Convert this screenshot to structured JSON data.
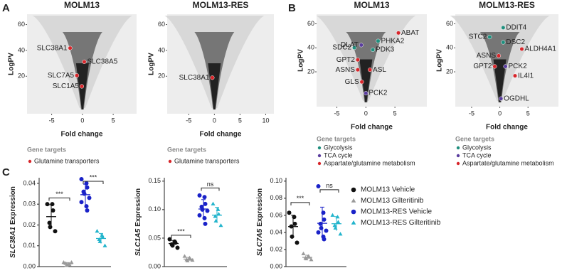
{
  "panel_labels": [
    "A",
    "B",
    "C"
  ],
  "legend": {
    "items": [
      {
        "name": "MOLM13 Vehicle",
        "color": "#111111",
        "marker": "circle"
      },
      {
        "name": "MOLM13 Gilteritinib",
        "color": "#9a9a9a",
        "marker": "triangle"
      },
      {
        "name": "MOLM13-RES Vehicle",
        "color": "#1a22c8",
        "marker": "circle"
      },
      {
        "name": "MOLM13-RES Gilteritinib",
        "color": "#22b4cc",
        "marker": "triangle"
      }
    ]
  },
  "chart_data": [
    {
      "type": "volcano",
      "title": "MOLM13",
      "xlabel": "Fold change",
      "ylabel": "LogPV",
      "xlim": [
        -9,
        8.8
      ],
      "ylim": [
        -9,
        68
      ],
      "xticks": [
        -5,
        0,
        5
      ],
      "yticks": [
        20,
        40,
        60
      ],
      "legend_title": "Gene targets",
      "series": [
        {
          "name": "Glutamine transporters",
          "color": "#d7262b",
          "x": [
            -2.0,
            0.3,
            -0.9,
            -0.1
          ],
          "y": [
            41.8,
            31.2,
            20.6,
            12.2
          ],
          "labels": [
            "SLC38A1",
            "SLC38A5",
            "SLC7A5",
            "SLC1A5"
          ]
        }
      ]
    },
    {
      "type": "volcano",
      "title": "MOLM13-RES",
      "xlabel": "Fold change",
      "ylabel": "LogPV",
      "xlim": [
        -9.2,
        11.6
      ],
      "ylim": [
        -9,
        68
      ],
      "xticks": [
        -5,
        0,
        5,
        10
      ],
      "yticks": [
        20,
        40,
        60
      ],
      "legend_title": "Gene targets",
      "series": [
        {
          "name": "Glutamine transporters",
          "color": "#d7262b",
          "x": [
            -0.4
          ],
          "y": [
            18.9
          ],
          "labels": [
            "SLC38A1"
          ]
        }
      ]
    },
    {
      "type": "volcano",
      "title": "MOLM13",
      "xlabel": "Fold change",
      "ylabel": "LogPV",
      "xlim": [
        -8.5,
        10.5
      ],
      "ylim": [
        -9,
        68
      ],
      "xticks": [
        -5,
        0,
        5
      ],
      "yticks": [
        20,
        40,
        60
      ],
      "legend_title": "Gene targets",
      "series": [
        {
          "name": "Glycolysis",
          "color": "#1f8f7e",
          "x": [
            2.1,
            1.2,
            -2.0
          ],
          "y": [
            45.7,
            38.4,
            40.1
          ],
          "labels": [
            "PHKA2",
            "PDK3",
            "SDC2"
          ]
        },
        {
          "name": "TCA cycle",
          "color": "#5a3d9e",
          "x": [
            -0.8,
            0
          ],
          "y": [
            42.3,
            2.2
          ],
          "labels": [
            "DLAT",
            "PCK2"
          ]
        },
        {
          "name": "Aspartate/glutamine metabolism",
          "color": "#d7262b",
          "x": [
            5.6,
            -1.4,
            -1.4,
            0.7,
            -0.7
          ],
          "y": [
            52.4,
            30,
            21.7,
            21.7,
            11.6
          ],
          "labels": [
            "ABAT",
            "GPT2",
            "ASNS",
            "ASL",
            "GLS"
          ]
        }
      ]
    },
    {
      "type": "volcano",
      "title": "MOLM13-RES",
      "xlabel": "Fold change",
      "ylabel": "LogPV",
      "xlim": [
        -7.9,
        10.4
      ],
      "ylim": [
        -9,
        68
      ],
      "xticks": [
        -5,
        0,
        5
      ],
      "yticks": [
        20,
        40,
        60
      ],
      "legend_title": "Gene targets",
      "series": [
        {
          "name": "Glycolysis",
          "color": "#1f8f7e",
          "x": [
            0.6,
            -1.8,
            0.6
          ],
          "y": [
            56.8,
            49.0,
            44.6
          ],
          "labels": [
            "DDIT4",
            "STC2",
            "DSC2"
          ]
        },
        {
          "name": "TCA cycle",
          "color": "#5a3d9e",
          "x": [
            1.0,
            0.2
          ],
          "y": [
            24.5,
            -2.3
          ],
          "labels": [
            "PCK2",
            "OGDHL"
          ]
        },
        {
          "name": "Aspartate/glutamine metabolism",
          "color": "#d7262b",
          "x": [
            3.9,
            -0.2,
            -0.9,
            2.7
          ],
          "y": [
            39.0,
            33.4,
            24.5,
            16.7
          ],
          "labels": [
            "ALDH4A1",
            "ASNS",
            "GPT2",
            "IL4I1"
          ]
        }
      ]
    },
    {
      "type": "dot",
      "gene": "SLC38A1",
      "ylabel": "Expression",
      "ylim": [
        0,
        0.0427
      ],
      "yticks": [
        {
          "value": 0,
          "label": "0.00"
        },
        {
          "value": 0.01,
          "label": "0.01"
        },
        {
          "value": 0.02,
          "label": "0.02"
        },
        {
          "value": 0.03,
          "label": "0.03"
        },
        {
          "value": 0.04,
          "label": "0.04"
        }
      ],
      "series": [
        {
          "values": [
            0.03,
            0.03,
            0.027,
            0.021,
            0.019,
            0.017
          ]
        },
        {
          "values": [
            0.002,
            0.001,
            0.001,
            0.0015,
            0.0005,
            0.002
          ]
        },
        {
          "values": [
            0.042,
            0.04,
            0.038,
            0.036,
            0.035,
            0.033,
            0.031,
            0.029,
            0.027
          ]
        },
        {
          "values": [
            0.017,
            0.015,
            0.014,
            0.013,
            0.012,
            0.01
          ]
        }
      ],
      "brackets": [
        {
          "groups": [
            0,
            1
          ],
          "y": 0.033,
          "label": "***"
        },
        {
          "groups": [
            2,
            3
          ],
          "y": 0.041,
          "label": "***"
        }
      ]
    },
    {
      "type": "dot",
      "gene": "SLC1A5",
      "ylabel": "Expression",
      "ylim": [
        0,
        0.156
      ],
      "yticks": [
        {
          "value": 0,
          "label": "0.00"
        },
        {
          "value": 0.05,
          "label": "0.05"
        },
        {
          "value": 0.1,
          "label": "0.10"
        },
        {
          "value": 0.15,
          "label": "0.15"
        }
      ],
      "series": [
        {
          "values": [
            0.048,
            0.044,
            0.042,
            0.039,
            0.037,
            0.033
          ]
        },
        {
          "values": [
            0.018,
            0.015,
            0.013,
            0.012,
            0.01,
            0.011
          ]
        },
        {
          "values": [
            0.125,
            0.122,
            0.11,
            0.105,
            0.1,
            0.098,
            0.09,
            0.085,
            0.075
          ]
        },
        {
          "values": [
            0.11,
            0.1,
            0.092,
            0.088,
            0.08,
            0.072
          ]
        }
      ],
      "brackets": [
        {
          "groups": [
            0,
            1
          ],
          "y": 0.055,
          "label": "***"
        },
        {
          "groups": [
            2,
            3
          ],
          "y": 0.138,
          "label": "ns"
        }
      ]
    },
    {
      "type": "dot",
      "gene": "SLC7A5",
      "ylabel": "Expression",
      "ylim": [
        0,
        0.104
      ],
      "yticks": [
        {
          "value": 0,
          "label": "0.00"
        },
        {
          "value": 0.02,
          "label": "0.02"
        },
        {
          "value": 0.04,
          "label": "0.04"
        },
        {
          "value": 0.06,
          "label": "0.06"
        },
        {
          "value": 0.08,
          "label": "0.08"
        },
        {
          "value": 0.1,
          "label": "0.10"
        }
      ],
      "series": [
        {
          "values": [
            0.063,
            0.058,
            0.05,
            0.047,
            0.035,
            0.028
          ]
        },
        {
          "values": [
            0.015,
            0.012,
            0.011,
            0.01,
            0.009,
            0.008
          ]
        },
        {
          "values": [
            0.094,
            0.063,
            0.055,
            0.05,
            0.045,
            0.042,
            0.04,
            0.035,
            0.032
          ]
        },
        {
          "values": [
            0.06,
            0.058,
            0.052,
            0.048,
            0.045,
            0.038
          ]
        }
      ],
      "brackets": [
        {
          "groups": [
            0,
            1
          ],
          "y": 0.075,
          "label": "***"
        },
        {
          "groups": [
            2,
            3
          ],
          "y": 0.09,
          "label": "ns"
        }
      ]
    }
  ]
}
